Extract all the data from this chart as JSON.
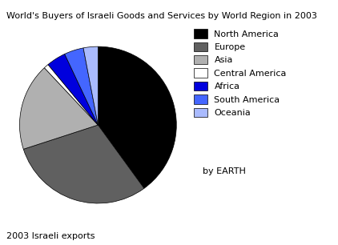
{
  "title": "World's Buyers of Israeli Goods and Services by World Region in 2003",
  "subtitle": "2003 Israeli exports",
  "annotation": "by EARTH",
  "labels": [
    "North America",
    "Europe",
    "Asia",
    "Central America",
    "Africa",
    "South America",
    "Oceania"
  ],
  "values": [
    40,
    30,
    18,
    1,
    4,
    4,
    3
  ],
  "colors": [
    "#000000",
    "#606060",
    "#b0b0b0",
    "#ffffff",
    "#0000dd",
    "#4466ff",
    "#aabbff"
  ],
  "startangle": 90,
  "legend_fontsize": 8,
  "title_fontsize": 8,
  "subtitle_fontsize": 8,
  "annotation_fontsize": 8
}
